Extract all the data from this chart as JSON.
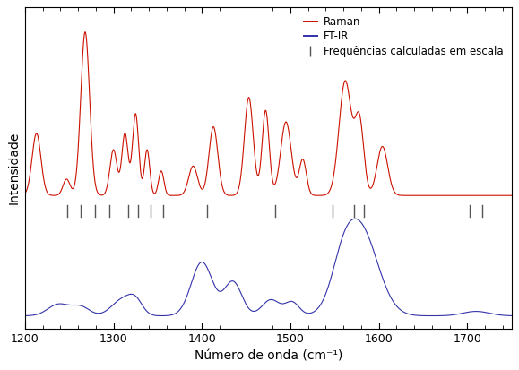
{
  "xmin": 1200,
  "xmax": 1750,
  "xlabel": "Número de onda (cm⁻¹)",
  "ylabel": "Intensidade",
  "raman_color": "#cc1100",
  "ftir_color": "#3333aa",
  "tick_color": "#555555",
  "legend_entries": [
    "Raman",
    "FT-IR",
    "Frequências calculadas em escala"
  ],
  "calc_freqs": [
    1248,
    1263,
    1279,
    1295,
    1317,
    1328,
    1342,
    1356,
    1406,
    1483,
    1548,
    1572,
    1583,
    1703,
    1717
  ],
  "xticks": [
    1200,
    1300,
    1400,
    1500,
    1600,
    1700
  ],
  "background": "#ffffff"
}
